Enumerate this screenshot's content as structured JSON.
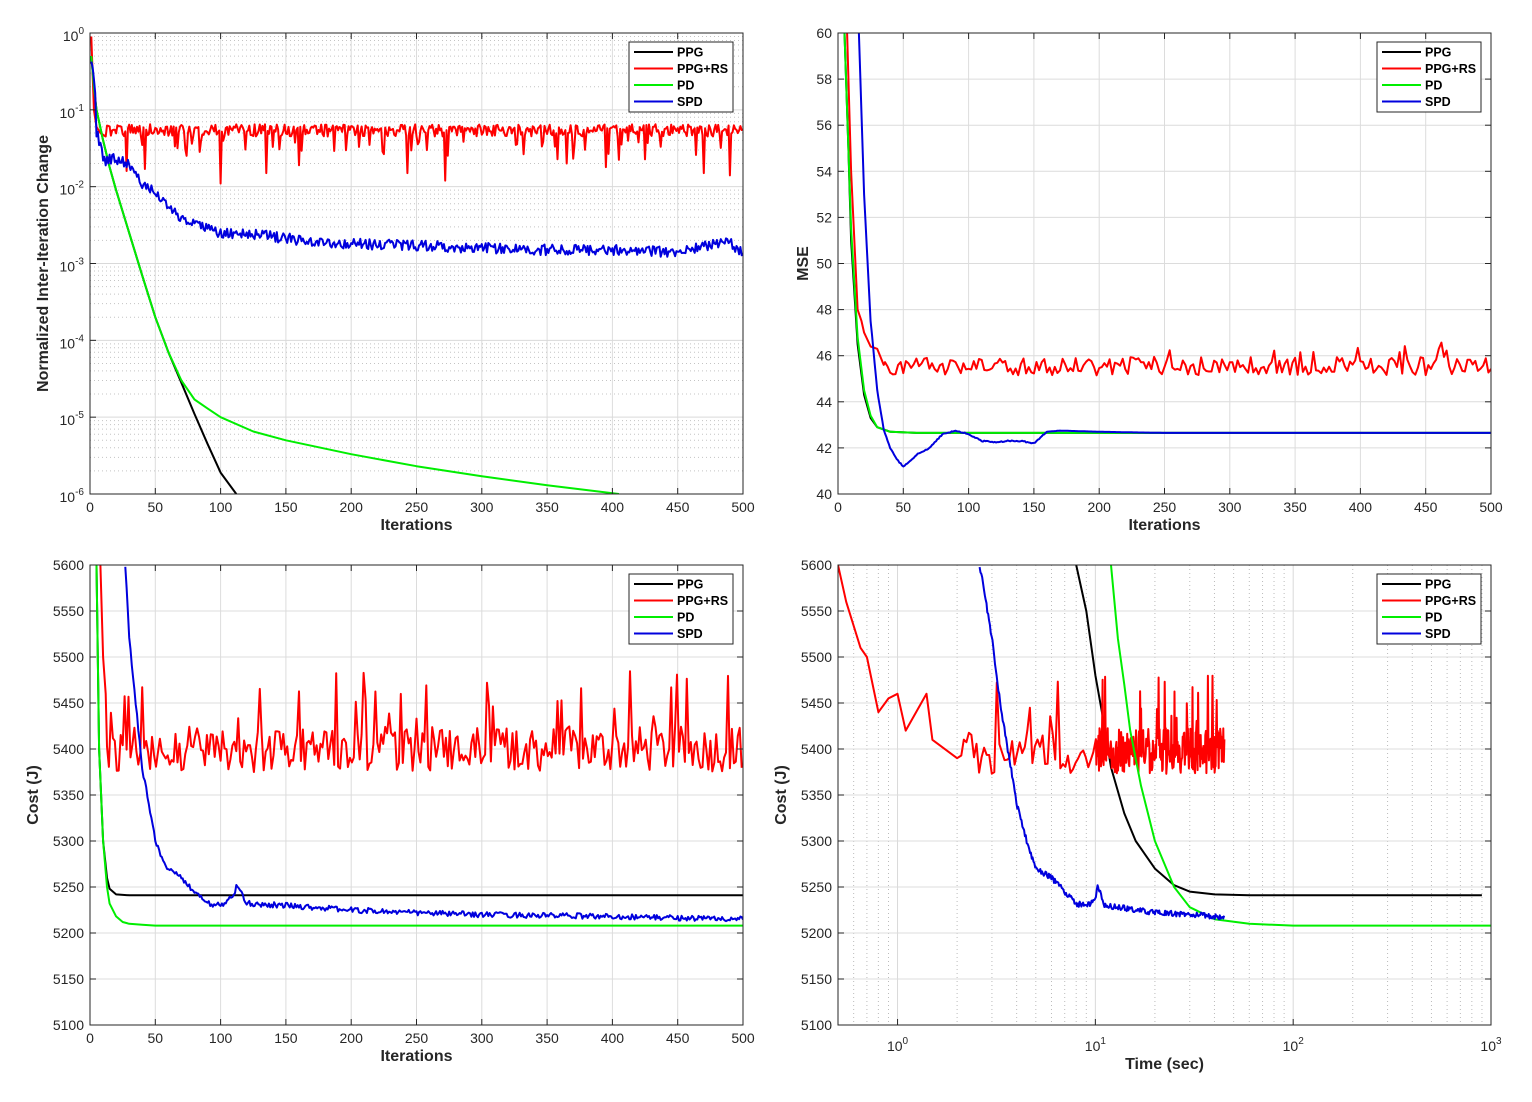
{
  "colors": {
    "PPG": "#000000",
    "PPG+RS": "#ff0000",
    "PD": "#00ee00",
    "SPD": "#0000dd"
  },
  "chart_data": [
    {
      "type": "line",
      "title": "",
      "xlabel": "Iterations",
      "ylabel": "Normalized Inter-Iteration Change",
      "xlim": [
        0,
        500
      ],
      "ylim": [
        1e-06,
        1
      ],
      "yscale": "log",
      "xticks": [
        0,
        50,
        100,
        150,
        200,
        250,
        300,
        350,
        400,
        450,
        500
      ],
      "ytick_labels": [
        {
          "v": 1e-06,
          "base": "10",
          "exp": "-6"
        },
        {
          "v": 1e-05,
          "base": "10",
          "exp": "-5"
        },
        {
          "v": 0.0001,
          "base": "10",
          "exp": "-4"
        },
        {
          "v": 0.001,
          "base": "10",
          "exp": "-3"
        },
        {
          "v": 0.01,
          "base": "10",
          "exp": "-2"
        },
        {
          "v": 0.1,
          "base": "10",
          "exp": "-1"
        },
        {
          "v": 1,
          "base": "10",
          "exp": "0"
        }
      ],
      "grid": true,
      "legend": "top-right",
      "series": [
        {
          "name": "PPG",
          "x": [
            1,
            3,
            5,
            10,
            15,
            20,
            30,
            40,
            50,
            60,
            70,
            80,
            90,
            100,
            112
          ],
          "y": [
            0.5,
            0.2,
            0.1,
            0.04,
            0.018,
            0.009,
            0.0025,
            0.0007,
            0.0002,
            7e-05,
            2.8e-05,
            1.1e-05,
            4.5e-06,
            1.9e-06,
            1e-06
          ]
        },
        {
          "name": "PPG+RS",
          "desc": "fluctuates around 0.06 (between 0.045 and 0.065) with sharp dips to about 0.015",
          "x": [
            1,
            2,
            3,
            5,
            8,
            12,
            28,
            42,
            100,
            135,
            160,
            243,
            272,
            365,
            395,
            470,
            490
          ],
          "y": [
            0.9,
            0.3,
            0.1,
            0.06,
            0.05,
            0.045,
            0.016,
            0.017,
            0.011,
            0.015,
            0.019,
            0.015,
            0.012,
            0.02,
            0.018,
            0.015,
            0.014
          ]
        },
        {
          "name": "PD",
          "x": [
            1,
            3,
            5,
            10,
            15,
            20,
            30,
            40,
            50,
            60,
            70,
            80,
            90,
            100,
            125,
            150,
            200,
            250,
            300,
            350,
            405
          ],
          "y": [
            0.5,
            0.2,
            0.1,
            0.04,
            0.018,
            0.009,
            0.0025,
            0.0007,
            0.0002,
            7e-05,
            3e-05,
            1.7e-05,
            1.3e-05,
            1e-05,
            6.5e-06,
            5e-06,
            3.3e-06,
            2.3e-06,
            1.7e-06,
            1.3e-06,
            1e-06
          ]
        },
        {
          "name": "SPD",
          "x": [
            1,
            5,
            10,
            20,
            30,
            40,
            50,
            60,
            70,
            80,
            90,
            100,
            120,
            150,
            200,
            250,
            300,
            350,
            400,
            450,
            490,
            500
          ],
          "y": [
            0.45,
            0.05,
            0.022,
            0.023,
            0.02,
            0.011,
            0.008,
            0.0055,
            0.004,
            0.0035,
            0.003,
            0.0024,
            0.0025,
            0.0021,
            0.0018,
            0.0017,
            0.0016,
            0.0015,
            0.0015,
            0.0014,
            0.0019,
            0.0013
          ]
        }
      ]
    },
    {
      "type": "line",
      "title": "",
      "xlabel": "Iterations",
      "ylabel": "MSE",
      "xlim": [
        0,
        500
      ],
      "ylim": [
        40,
        60
      ],
      "xticks": [
        0,
        50,
        100,
        150,
        200,
        250,
        300,
        350,
        400,
        450,
        500
      ],
      "yticks": [
        40,
        42,
        44,
        46,
        48,
        50,
        52,
        54,
        56,
        58,
        60
      ],
      "grid": true,
      "legend": "top-right",
      "series": [
        {
          "name": "PPG",
          "x": [
            5,
            8,
            10,
            15,
            20,
            25,
            30,
            40,
            60,
            100,
            500
          ],
          "y": [
            60,
            55,
            51,
            46.5,
            44.3,
            43.3,
            42.9,
            42.7,
            42.65,
            42.65,
            42.65
          ]
        },
        {
          "name": "PPG+RS",
          "desc": "fluctuates around 45.6 (between 45.0 and 46.6)",
          "x": [
            7,
            10,
            15,
            20,
            25,
            30,
            35,
            40,
            50,
            500
          ],
          "y": [
            60,
            54,
            48,
            47,
            46.4,
            46.3,
            45.6,
            45.5,
            45.7,
            45.3
          ]
        },
        {
          "name": "PD",
          "x": [
            5,
            8,
            10,
            15,
            20,
            25,
            30,
            40,
            60,
            100,
            500
          ],
          "y": [
            60,
            55,
            51.5,
            46.8,
            44.5,
            43.4,
            42.9,
            42.7,
            42.65,
            42.65,
            42.65
          ]
        },
        {
          "name": "SPD",
          "x": [
            16,
            20,
            25,
            30,
            35,
            40,
            45,
            50,
            55,
            60,
            70,
            80,
            90,
            100,
            110,
            120,
            130,
            140,
            150,
            160,
            170,
            200,
            250,
            300,
            400,
            500
          ],
          "y": [
            60,
            53,
            47.5,
            44.5,
            42.8,
            42,
            41.5,
            41.2,
            41.4,
            41.7,
            42,
            42.6,
            42.75,
            42.6,
            42.3,
            42.25,
            42.3,
            42.3,
            42.2,
            42.7,
            42.75,
            42.7,
            42.65,
            42.65,
            42.65,
            42.65
          ]
        }
      ]
    },
    {
      "type": "line",
      "title": "",
      "xlabel": "Iterations",
      "ylabel": "Cost (J)",
      "xlim": [
        0,
        500
      ],
      "ylim": [
        5100,
        5600
      ],
      "xticks": [
        0,
        50,
        100,
        150,
        200,
        250,
        300,
        350,
        400,
        450,
        500
      ],
      "yticks": [
        5100,
        5150,
        5200,
        5250,
        5300,
        5350,
        5400,
        5450,
        5500,
        5550,
        5600
      ],
      "grid": true,
      "legend": "top-right",
      "series": [
        {
          "name": "PPG",
          "x": [
            5,
            7,
            10,
            13,
            15,
            20,
            30,
            50,
            100,
            500
          ],
          "y": [
            5600,
            5400,
            5300,
            5260,
            5248,
            5242,
            5241,
            5241,
            5241,
            5241
          ]
        },
        {
          "name": "PPG+RS",
          "desc": "fluctuates around 5400 (between 5365 and 5485)",
          "x": [
            8,
            10,
            12,
            15,
            20,
            30,
            50,
            500
          ],
          "y": [
            5600,
            5500,
            5460,
            5430,
            5400,
            5390,
            5400,
            5380
          ]
        },
        {
          "name": "PD",
          "x": [
            5,
            7,
            10,
            13,
            15,
            20,
            25,
            30,
            40,
            50,
            100,
            500
          ],
          "y": [
            5600,
            5400,
            5300,
            5250,
            5232,
            5218,
            5212,
            5210,
            5209,
            5208,
            5208,
            5208
          ]
        },
        {
          "name": "SPD",
          "x": [
            27,
            30,
            35,
            40,
            45,
            50,
            55,
            60,
            70,
            80,
            90,
            100,
            110,
            112,
            120,
            150,
            200,
            250,
            300,
            400,
            500
          ],
          "y": [
            5600,
            5520,
            5450,
            5380,
            5340,
            5300,
            5280,
            5270,
            5260,
            5245,
            5232,
            5230,
            5240,
            5252,
            5232,
            5230,
            5225,
            5222,
            5220,
            5218,
            5215
          ]
        }
      ]
    },
    {
      "type": "line",
      "title": "",
      "xlabel": "Time (sec)",
      "ylabel": "Cost (J)",
      "xlim": [
        0.5,
        1000
      ],
      "ylim": [
        5100,
        5600
      ],
      "xscale": "log",
      "xtick_labels": [
        {
          "v": 1,
          "base": "10",
          "exp": "0"
        },
        {
          "v": 10,
          "base": "10",
          "exp": "1"
        },
        {
          "v": 100,
          "base": "10",
          "exp": "2"
        },
        {
          "v": 1000,
          "base": "10",
          "exp": "3"
        }
      ],
      "yticks": [
        5100,
        5150,
        5200,
        5250,
        5300,
        5350,
        5400,
        5450,
        5500,
        5550,
        5600
      ],
      "grid": true,
      "legend": "top-right",
      "series": [
        {
          "name": "PPG",
          "x": [
            8,
            9,
            10,
            11,
            12,
            14,
            16,
            20,
            25,
            30,
            40,
            60,
            100,
            900
          ],
          "y": [
            5600,
            5550,
            5480,
            5430,
            5380,
            5330,
            5300,
            5270,
            5252,
            5245,
            5242,
            5241,
            5241,
            5241
          ]
        },
        {
          "name": "PPG+RS",
          "desc": "noisy, fluctuating between 5370 and 5480 from 1 to 45 sec",
          "x": [
            0.5,
            0.55,
            0.65,
            0.7,
            0.8,
            0.9,
            1.0,
            1.1,
            1.4,
            1.5,
            2,
            3,
            4,
            5,
            10,
            20,
            45
          ],
          "y": [
            5600,
            5560,
            5510,
            5500,
            5440,
            5455,
            5460,
            5420,
            5460,
            5410,
            5390,
            5400,
            5400,
            5395,
            5400,
            5400,
            5390
          ]
        },
        {
          "name": "PD",
          "x": [
            12,
            13,
            14,
            15,
            17,
            20,
            25,
            30,
            40,
            60,
            100,
            200,
            1000
          ],
          "y": [
            5600,
            5520,
            5470,
            5420,
            5360,
            5300,
            5250,
            5228,
            5215,
            5210,
            5208,
            5208,
            5208
          ]
        },
        {
          "name": "SPD",
          "x": [
            2.6,
            3,
            3.3,
            3.6,
            4,
            4.5,
            5,
            6,
            7,
            8,
            9,
            10,
            10.3,
            11,
            13,
            16,
            20,
            30,
            45
          ],
          "y": [
            5600,
            5520,
            5450,
            5400,
            5340,
            5300,
            5270,
            5260,
            5245,
            5232,
            5230,
            5235,
            5252,
            5230,
            5228,
            5225,
            5222,
            5220,
            5217
          ]
        }
      ]
    }
  ]
}
